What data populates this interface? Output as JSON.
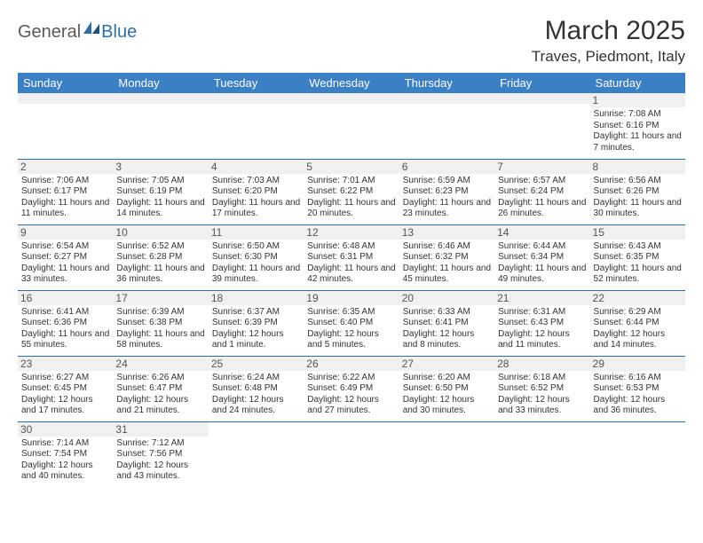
{
  "logo": {
    "part1": "General",
    "part2": "Blue"
  },
  "title": "March 2025",
  "location": "Traves, Piedmont, Italy",
  "colors": {
    "header_bg": "#3b7fc4",
    "header_text": "#ffffff",
    "rule": "#2f6fa8",
    "daynum_bg": "#f0f0f0",
    "logo_gray": "#5a5a5a",
    "logo_blue": "#2f6fa8"
  },
  "daynames": [
    "Sunday",
    "Monday",
    "Tuesday",
    "Wednesday",
    "Thursday",
    "Friday",
    "Saturday"
  ],
  "weeks": [
    [
      null,
      null,
      null,
      null,
      null,
      null,
      {
        "n": "1",
        "sr": "7:08 AM",
        "ss": "6:16 PM",
        "dl": "11 hours and 7 minutes."
      }
    ],
    [
      {
        "n": "2",
        "sr": "7:06 AM",
        "ss": "6:17 PM",
        "dl": "11 hours and 11 minutes."
      },
      {
        "n": "3",
        "sr": "7:05 AM",
        "ss": "6:19 PM",
        "dl": "11 hours and 14 minutes."
      },
      {
        "n": "4",
        "sr": "7:03 AM",
        "ss": "6:20 PM",
        "dl": "11 hours and 17 minutes."
      },
      {
        "n": "5",
        "sr": "7:01 AM",
        "ss": "6:22 PM",
        "dl": "11 hours and 20 minutes."
      },
      {
        "n": "6",
        "sr": "6:59 AM",
        "ss": "6:23 PM",
        "dl": "11 hours and 23 minutes."
      },
      {
        "n": "7",
        "sr": "6:57 AM",
        "ss": "6:24 PM",
        "dl": "11 hours and 26 minutes."
      },
      {
        "n": "8",
        "sr": "6:56 AM",
        "ss": "6:26 PM",
        "dl": "11 hours and 30 minutes."
      }
    ],
    [
      {
        "n": "9",
        "sr": "6:54 AM",
        "ss": "6:27 PM",
        "dl": "11 hours and 33 minutes."
      },
      {
        "n": "10",
        "sr": "6:52 AM",
        "ss": "6:28 PM",
        "dl": "11 hours and 36 minutes."
      },
      {
        "n": "11",
        "sr": "6:50 AM",
        "ss": "6:30 PM",
        "dl": "11 hours and 39 minutes."
      },
      {
        "n": "12",
        "sr": "6:48 AM",
        "ss": "6:31 PM",
        "dl": "11 hours and 42 minutes."
      },
      {
        "n": "13",
        "sr": "6:46 AM",
        "ss": "6:32 PM",
        "dl": "11 hours and 45 minutes."
      },
      {
        "n": "14",
        "sr": "6:44 AM",
        "ss": "6:34 PM",
        "dl": "11 hours and 49 minutes."
      },
      {
        "n": "15",
        "sr": "6:43 AM",
        "ss": "6:35 PM",
        "dl": "11 hours and 52 minutes."
      }
    ],
    [
      {
        "n": "16",
        "sr": "6:41 AM",
        "ss": "6:36 PM",
        "dl": "11 hours and 55 minutes."
      },
      {
        "n": "17",
        "sr": "6:39 AM",
        "ss": "6:38 PM",
        "dl": "11 hours and 58 minutes."
      },
      {
        "n": "18",
        "sr": "6:37 AM",
        "ss": "6:39 PM",
        "dl": "12 hours and 1 minute."
      },
      {
        "n": "19",
        "sr": "6:35 AM",
        "ss": "6:40 PM",
        "dl": "12 hours and 5 minutes."
      },
      {
        "n": "20",
        "sr": "6:33 AM",
        "ss": "6:41 PM",
        "dl": "12 hours and 8 minutes."
      },
      {
        "n": "21",
        "sr": "6:31 AM",
        "ss": "6:43 PM",
        "dl": "12 hours and 11 minutes."
      },
      {
        "n": "22",
        "sr": "6:29 AM",
        "ss": "6:44 PM",
        "dl": "12 hours and 14 minutes."
      }
    ],
    [
      {
        "n": "23",
        "sr": "6:27 AM",
        "ss": "6:45 PM",
        "dl": "12 hours and 17 minutes."
      },
      {
        "n": "24",
        "sr": "6:26 AM",
        "ss": "6:47 PM",
        "dl": "12 hours and 21 minutes."
      },
      {
        "n": "25",
        "sr": "6:24 AM",
        "ss": "6:48 PM",
        "dl": "12 hours and 24 minutes."
      },
      {
        "n": "26",
        "sr": "6:22 AM",
        "ss": "6:49 PM",
        "dl": "12 hours and 27 minutes."
      },
      {
        "n": "27",
        "sr": "6:20 AM",
        "ss": "6:50 PM",
        "dl": "12 hours and 30 minutes."
      },
      {
        "n": "28",
        "sr": "6:18 AM",
        "ss": "6:52 PM",
        "dl": "12 hours and 33 minutes."
      },
      {
        "n": "29",
        "sr": "6:16 AM",
        "ss": "6:53 PM",
        "dl": "12 hours and 36 minutes."
      }
    ],
    [
      {
        "n": "30",
        "sr": "7:14 AM",
        "ss": "7:54 PM",
        "dl": "12 hours and 40 minutes."
      },
      {
        "n": "31",
        "sr": "7:12 AM",
        "ss": "7:56 PM",
        "dl": "12 hours and 43 minutes."
      },
      null,
      null,
      null,
      null,
      null
    ]
  ],
  "labels": {
    "sunrise": "Sunrise:",
    "sunset": "Sunset:",
    "daylight": "Daylight:"
  }
}
